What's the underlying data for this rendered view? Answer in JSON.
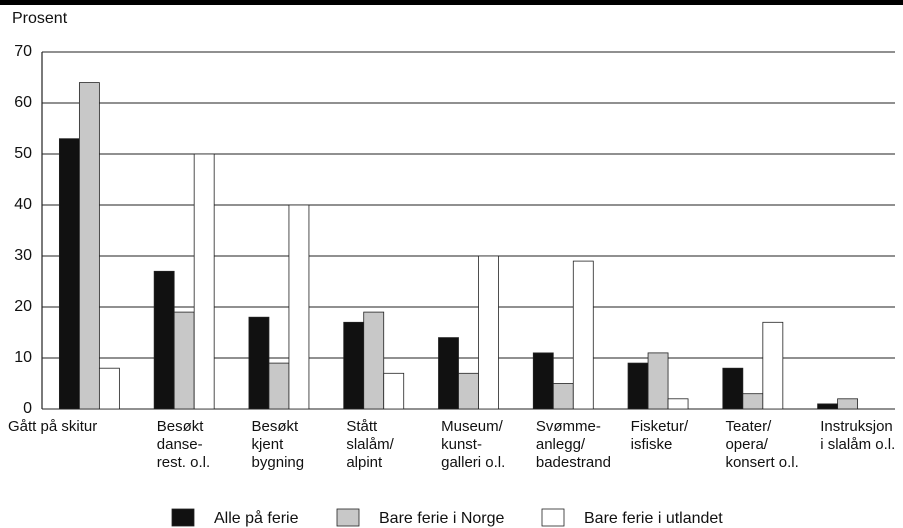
{
  "chart_data": {
    "type": "bar",
    "y_label": "Prosent",
    "categories": [
      "Gått på skitur",
      "Besøkt\ndanse-\nrest. o.l.",
      "Besøkt\nkjent\nbygning",
      "Stått\nslalåm/\nalpint",
      "Museum/\nkunst-\ngalleri o.l.",
      "Svømme-\nanlegg/\nbadestrand",
      "Fisketur/\nisfiske",
      "Teater/\nopera/\nkonsert o.l.",
      "Instruksjon\ni slalåm o.l."
    ],
    "series": [
      {
        "name": "Alle på ferie",
        "color": "#111111",
        "values": [
          53,
          27,
          18,
          17,
          14,
          11,
          9,
          8,
          1
        ]
      },
      {
        "name": "Bare ferie i Norge",
        "color": "#c8c8c8",
        "values": [
          64,
          19,
          9,
          19,
          7,
          5,
          11,
          3,
          2
        ]
      },
      {
        "name": "Bare ferie i utlandet",
        "color": "#ffffff",
        "values": [
          8,
          50,
          40,
          7,
          30,
          29,
          2,
          17,
          0
        ]
      }
    ],
    "ylim": [
      0,
      70
    ],
    "yticks": [
      0,
      10,
      20,
      30,
      40,
      50,
      60,
      70
    ],
    "grid": true
  }
}
